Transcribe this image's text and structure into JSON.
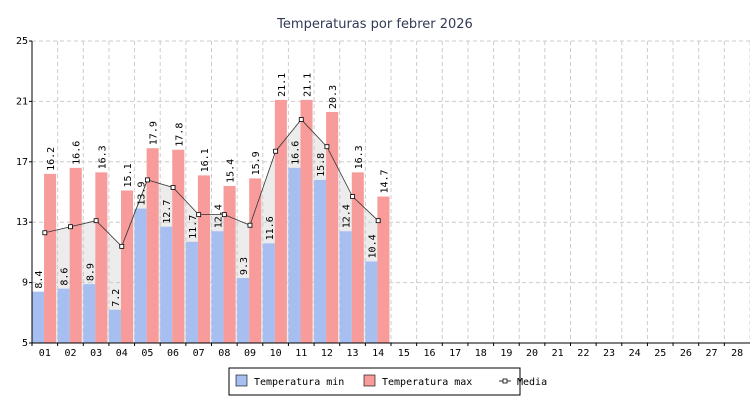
{
  "chart_data": {
    "type": "bar",
    "title": "Temperaturas por febrer 2026",
    "categories": [
      "01",
      "02",
      "03",
      "04",
      "05",
      "06",
      "07",
      "08",
      "09",
      "10",
      "11",
      "12",
      "13",
      "14",
      "15",
      "16",
      "17",
      "18",
      "19",
      "20",
      "21",
      "22",
      "23",
      "24",
      "25",
      "26",
      "27",
      "28"
    ],
    "series": [
      {
        "name": "Temperatura min",
        "color": "#a6bff0",
        "values": [
          8.4,
          8.6,
          8.9,
          7.2,
          13.9,
          12.7,
          11.7,
          12.4,
          9.3,
          11.6,
          16.6,
          15.8,
          12.4,
          10.4,
          null,
          null,
          null,
          null,
          null,
          null,
          null,
          null,
          null,
          null,
          null,
          null,
          null,
          null
        ]
      },
      {
        "name": "Temperatura max",
        "color": "#f79b9b",
        "values": [
          16.2,
          16.6,
          16.3,
          15.1,
          17.9,
          17.8,
          16.1,
          15.4,
          15.9,
          21.1,
          21.1,
          20.3,
          16.3,
          14.7,
          null,
          null,
          null,
          null,
          null,
          null,
          null,
          null,
          null,
          null,
          null,
          null,
          null,
          null
        ]
      },
      {
        "name": "Media",
        "color": "#333333",
        "type": "line",
        "values": [
          12.3,
          12.7,
          13.1,
          11.4,
          15.8,
          15.3,
          13.5,
          13.5,
          12.8,
          17.7,
          19.8,
          18.0,
          14.7,
          13.1,
          null,
          null,
          null,
          null,
          null,
          null,
          null,
          null,
          null,
          null,
          null,
          null,
          null,
          null
        ]
      }
    ],
    "ylim": [
      5,
      25
    ],
    "yticks": [
      5,
      9,
      13,
      17,
      21,
      25
    ],
    "grid": true,
    "legend": "bottom"
  }
}
